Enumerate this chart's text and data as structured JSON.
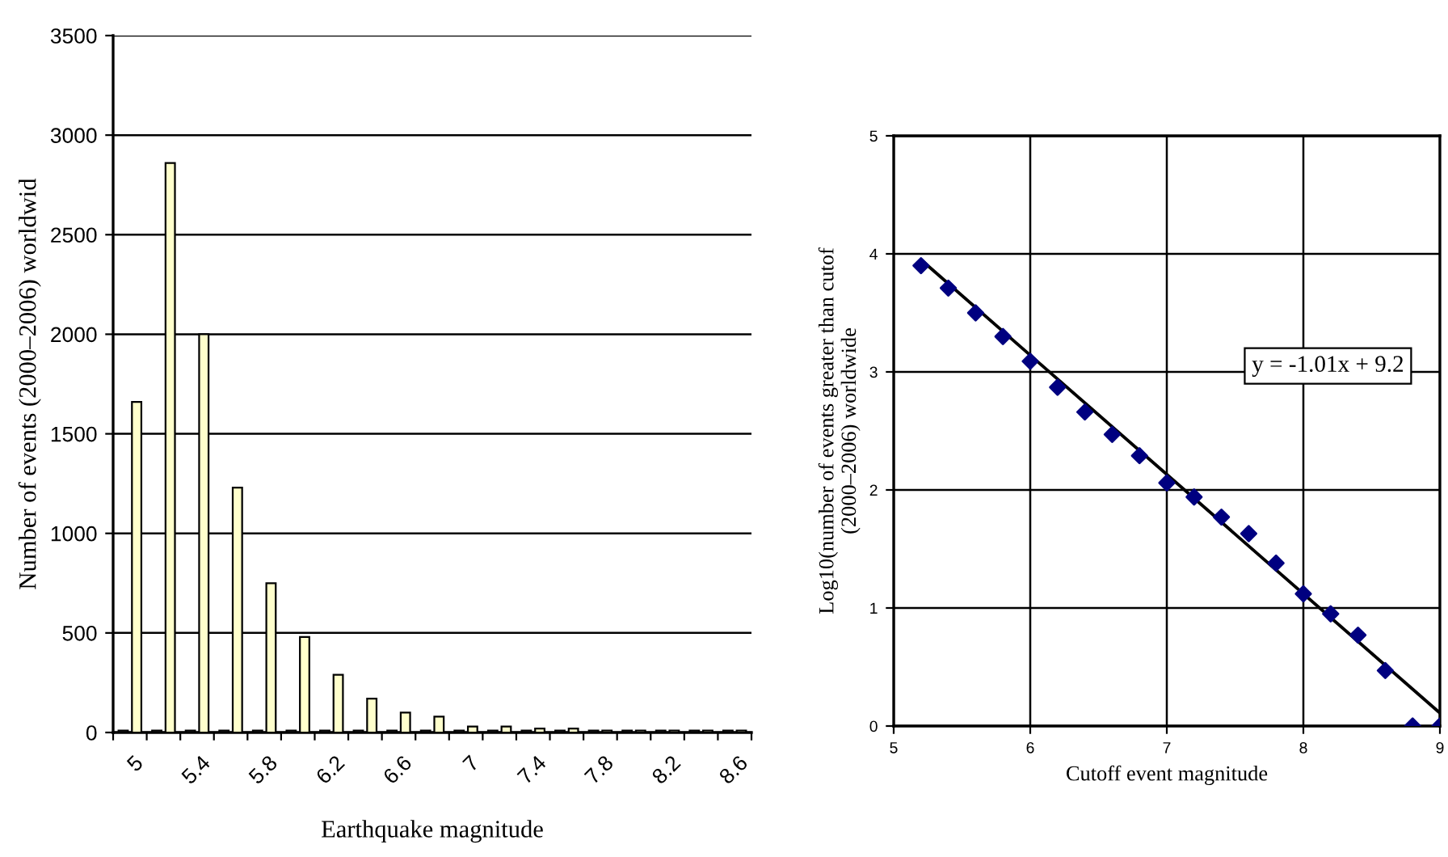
{
  "chart_data": [
    {
      "type": "bar",
      "xlabel": "Earthquake magnitude",
      "ylabel": "Number of events (2000–2006) worldwid",
      "categories": [
        "5",
        null,
        "5.4",
        null,
        "5.8",
        null,
        "6.2",
        null,
        "6.6",
        null,
        "7",
        null,
        "7.4",
        null,
        "7.8",
        null,
        "8.2",
        null,
        "8.6"
      ],
      "series": [
        {
          "color": "#333333",
          "values": [
            10,
            10,
            10,
            10,
            10,
            10,
            10,
            10,
            10,
            10,
            10,
            10,
            10,
            10,
            10,
            10,
            10,
            10,
            10
          ]
        },
        {
          "color": "#ffffcc",
          "values": [
            1660,
            2860,
            2000,
            1230,
            750,
            480,
            290,
            170,
            100,
            80,
            30,
            30,
            20,
            20,
            10,
            10,
            10,
            10,
            10
          ]
        }
      ],
      "ylim": [
        0,
        3500
      ],
      "yticks": [
        0,
        500,
        1000,
        1500,
        2000,
        2500,
        3000,
        3500
      ],
      "grid": "y"
    },
    {
      "type": "scatter",
      "xlabel": "Cutoff event magnitude",
      "ylabel": "Log10(number of events greater than cutof\n(2000–2006) worldwide",
      "annotations": [
        "y = -1.01x + 9.2"
      ],
      "series": [
        {
          "type": "scatter",
          "color": "#000080",
          "marker": "diamond",
          "x": [
            5.2,
            5.4,
            5.6,
            5.8,
            6.0,
            6.2,
            6.4,
            6.6,
            6.8,
            7.0,
            7.2,
            7.4,
            7.6,
            7.8,
            8.0,
            8.2,
            8.4,
            8.6,
            8.8,
            9.0
          ],
          "values": [
            3.9,
            3.71,
            3.5,
            3.3,
            3.09,
            2.87,
            2.66,
            2.47,
            2.29,
            2.06,
            1.94,
            1.77,
            1.63,
            1.38,
            1.12,
            0.95,
            0.77,
            0.47,
            0,
            0
          ]
        },
        {
          "type": "line",
          "color": "#000000",
          "marker": "none",
          "x": [
            5.2,
            9.0
          ],
          "values": [
            3.95,
            0.11
          ]
        }
      ],
      "xlim": [
        5,
        9
      ],
      "xticks": [
        5,
        6,
        7,
        8,
        9
      ],
      "ylim": [
        0,
        5
      ],
      "yticks": [
        0,
        1,
        2,
        3,
        4,
        5
      ],
      "grid": true
    }
  ]
}
